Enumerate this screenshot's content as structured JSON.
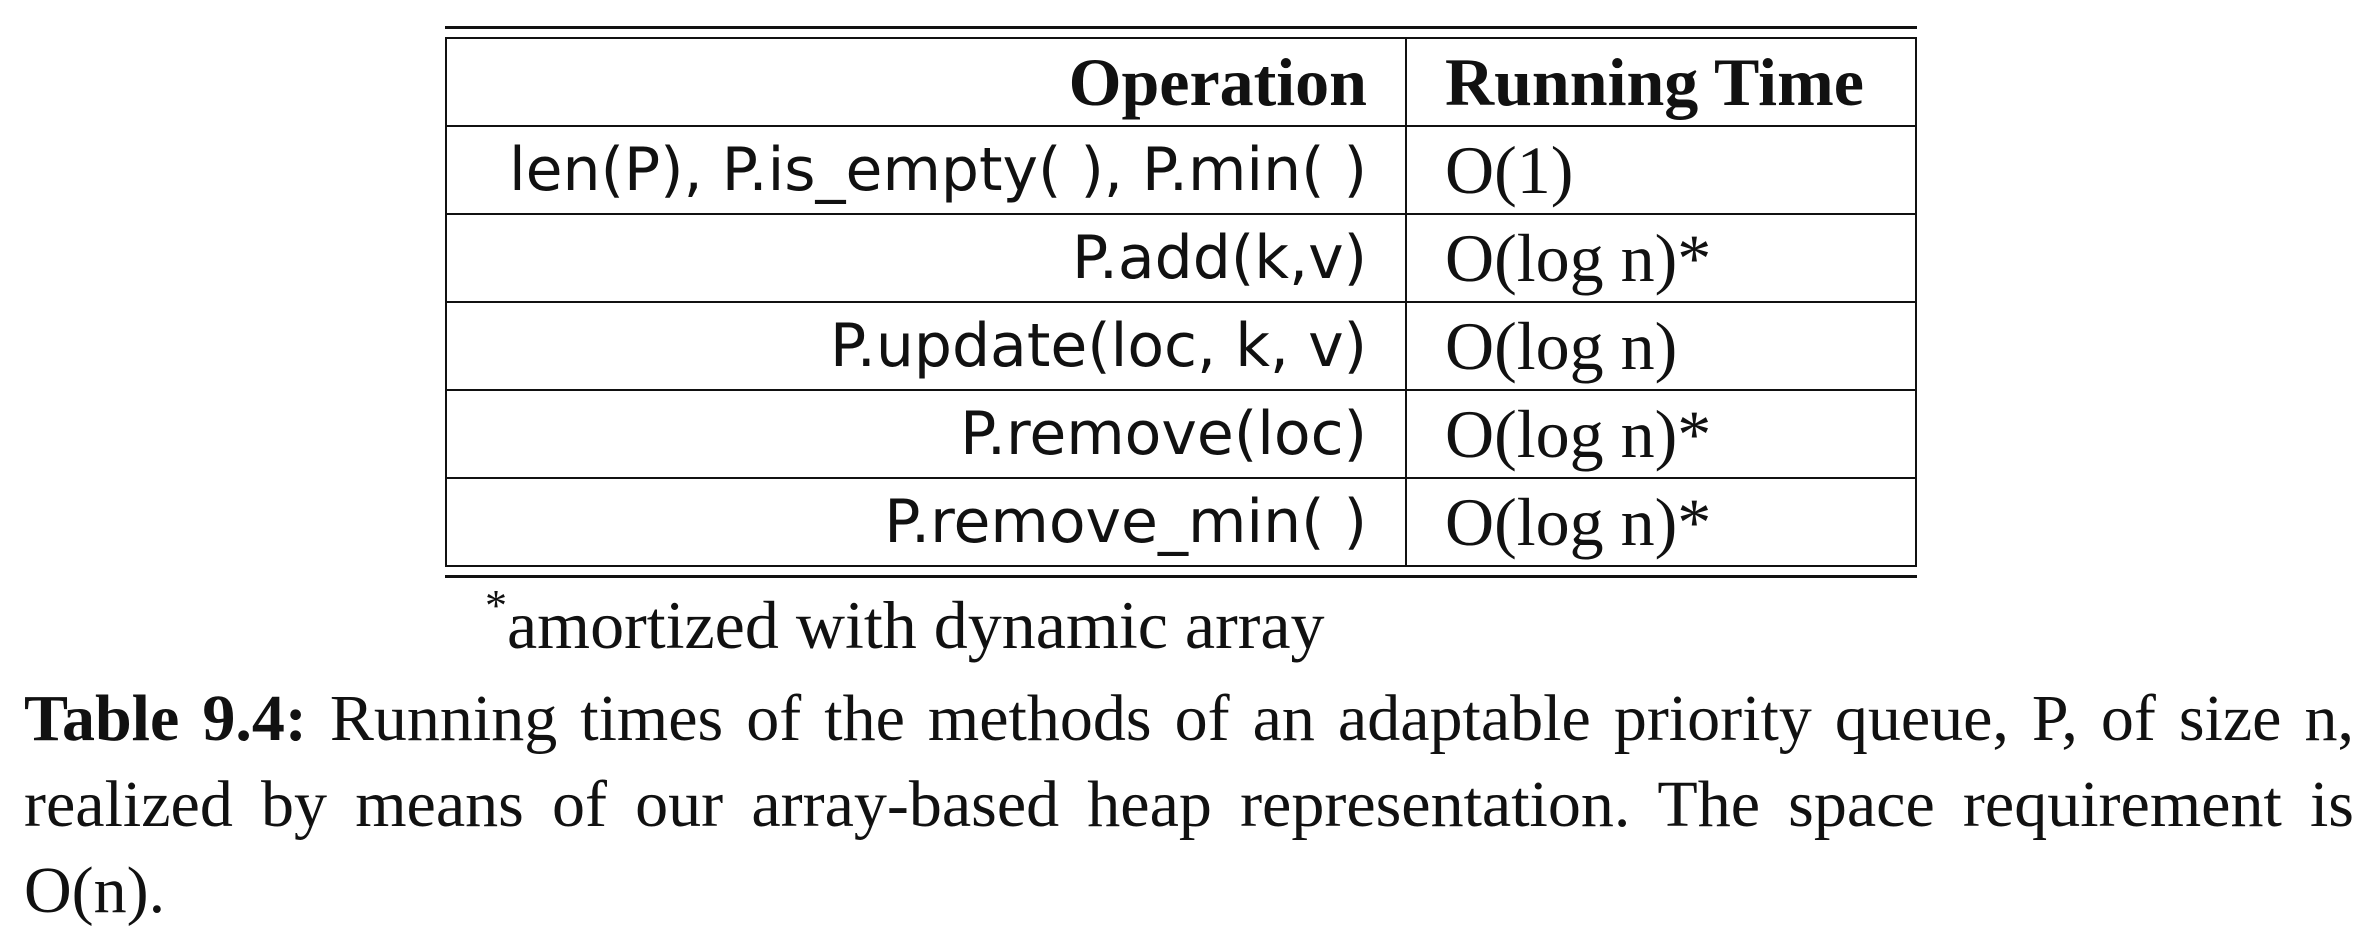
{
  "table": {
    "headers": [
      "Operation",
      "Running Time"
    ],
    "rows": [
      {
        "operation": "len(P), P.is_empty( ), P.min( )",
        "running_time": "O(1)"
      },
      {
        "operation": "P.add(k,v)",
        "running_time": "O(log n)*"
      },
      {
        "operation": "P.update(loc, k, v)",
        "running_time": "O(log n)"
      },
      {
        "operation": "P.remove(loc)",
        "running_time": "O(log n)*"
      },
      {
        "operation": "P.remove_min( )",
        "running_time": "O(log n)*"
      }
    ]
  },
  "footnote": {
    "marker": "*",
    "text": "amortized with dynamic array"
  },
  "caption": {
    "label": "Table 9.4:",
    "text": "Running times of the methods of an adaptable priority queue, P, of size n, realized by means of our array-based heap representation. The space requirement is O(n)."
  }
}
